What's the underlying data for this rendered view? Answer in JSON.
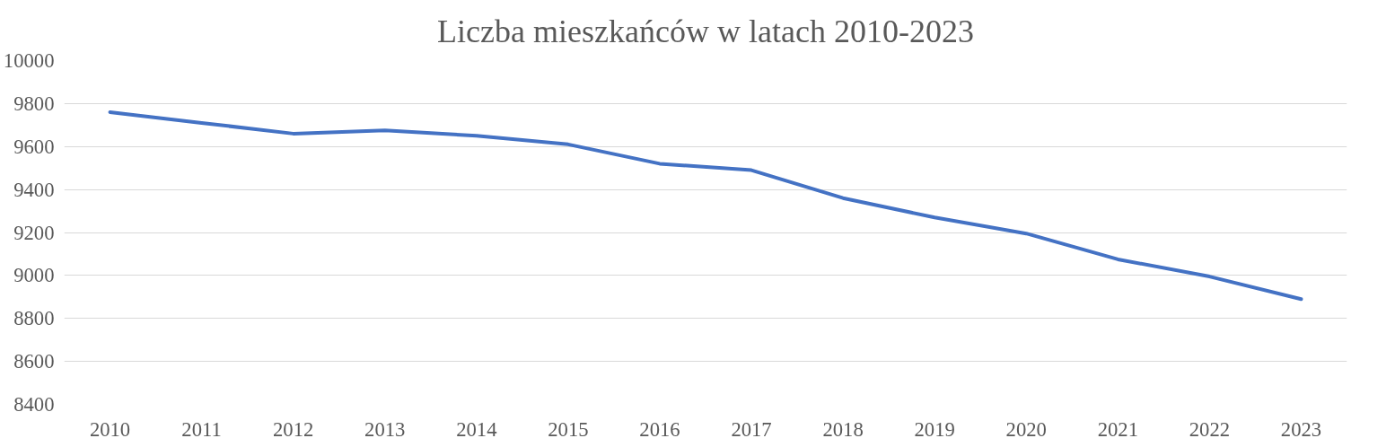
{
  "chart_data": {
    "type": "line",
    "title": "Liczba mieszkańców w latach 2010-2023",
    "categories": [
      "2010",
      "2011",
      "2012",
      "2013",
      "2014",
      "2015",
      "2016",
      "2017",
      "2018",
      "2019",
      "2020",
      "2021",
      "2022",
      "2023"
    ],
    "series": [
      {
        "color": "#4472c4",
        "values": [
          9760,
          9710,
          9660,
          9675,
          9650,
          9610,
          9520,
          9490,
          9360,
          9270,
          9195,
          9075,
          8995,
          8890
        ]
      }
    ],
    "ylim": [
      8400,
      10000
    ],
    "yticks": [
      8400,
      8600,
      8800,
      9000,
      9200,
      9400,
      9600,
      9800,
      10000
    ],
    "grid": "y",
    "marker": "none",
    "line_style": "solid"
  }
}
